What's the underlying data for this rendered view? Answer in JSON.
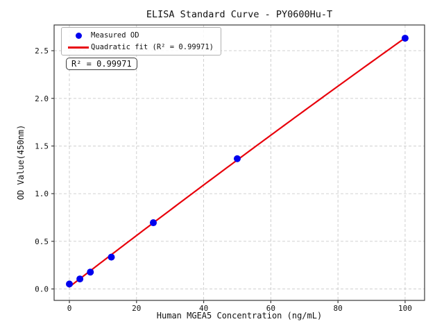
{
  "chart_data": {
    "type": "scatter",
    "title": "ELISA Standard Curve - PY0600Hu-T",
    "xlabel": "Human MGEA5 Concentration (ng/mL)",
    "ylabel": "OD Value(450nm)",
    "x": [
      0,
      3.125,
      6.25,
      12.5,
      25,
      50,
      100
    ],
    "series": [
      {
        "name": "Measured OD",
        "kind": "scatter",
        "color": "#0000ee",
        "values": [
          0.052,
          0.105,
          0.177,
          0.334,
          0.695,
          1.367,
          2.631
        ]
      },
      {
        "name": "Quadratic fit (R² = 0.99971)",
        "kind": "line",
        "color": "#e8000b",
        "fit": "quadratic",
        "fit_domain": [
          0,
          100
        ]
      }
    ],
    "annotation": "R² = 0.99971",
    "r_squared": 0.99971,
    "x_ticks": {
      "values": [
        0,
        20,
        40,
        60,
        80,
        100
      ],
      "labels": [
        "0",
        "20",
        "40",
        "60",
        "80",
        "100"
      ]
    },
    "y_ticks": {
      "values": [
        0,
        0.5,
        1.0,
        1.5,
        2.0,
        2.5
      ],
      "labels": [
        "0.0",
        "0.5",
        "1.0",
        "1.5",
        "2.0",
        "2.5"
      ]
    },
    "xlim": [
      -4.55,
      105.8
    ],
    "ylim": [
      -0.12,
      2.77
    ],
    "grid": true,
    "grid_style": "dashed",
    "legend_position": "upper left",
    "colors": {
      "grid": "#c9c9c9",
      "spine": "#3a3a3a",
      "tick_text": "#111111",
      "background": "#ffffff"
    }
  }
}
